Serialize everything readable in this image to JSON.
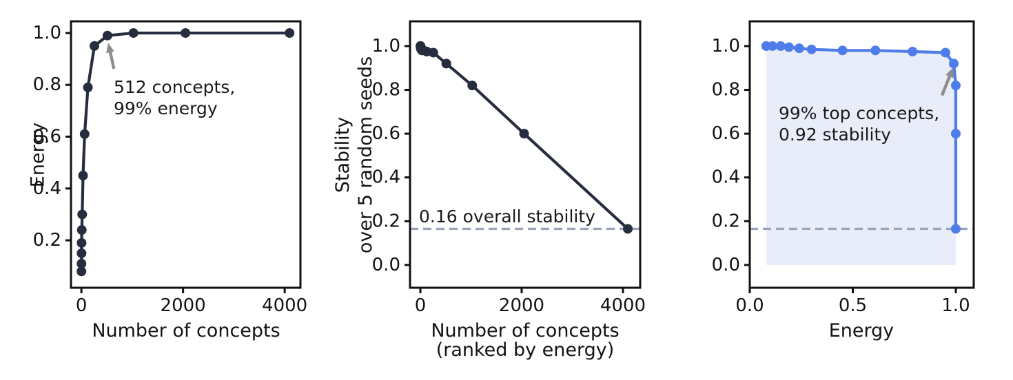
{
  "figure": {
    "description": "Three-panel line figure: energy saturation, stability decline, and stability vs energy trade-off",
    "background": "#ffffff",
    "colors": {
      "dark_line": "#262d3e",
      "blue_line": "#4e7ce8",
      "fill": "#e9edf9",
      "dashed": "#9aa5ba",
      "arrow": "#8e8e8e",
      "spine": "#111111",
      "text": "#131313"
    }
  },
  "chart_data": [
    {
      "type": "line",
      "title": "",
      "xlabel_lines": [
        "Number of concepts"
      ],
      "ylabel_lines": [
        "Energy"
      ],
      "series_color": "dark_line",
      "x": [
        1,
        2,
        3,
        4,
        8,
        16,
        32,
        64,
        128,
        256,
        512,
        1024,
        2048,
        4096
      ],
      "y": [
        0.08,
        0.11,
        0.15,
        0.19,
        0.24,
        0.3,
        0.45,
        0.61,
        0.79,
        0.95,
        0.99,
        1.0,
        1.0,
        1.0
      ],
      "xlim": [
        -205,
        4310
      ],
      "ylim": [
        0.017,
        1.045
      ],
      "xticks": [
        0,
        2000,
        4000
      ],
      "xtick_labels": [
        "0",
        "2000",
        "4000"
      ],
      "yticks": [
        0.2,
        0.4,
        0.6,
        0.8,
        1.0
      ],
      "ytick_labels": [
        "0.2",
        "0.4",
        "0.6",
        "0.8",
        "1.0"
      ],
      "grid": false,
      "annotation": {
        "lines": [
          "512 concepts,",
          "99% energy"
        ],
        "arrow_tail": [
          640,
          0.862
        ],
        "arrow_head": [
          527,
          0.962
        ]
      }
    },
    {
      "type": "line",
      "title": "",
      "xlabel_lines": [
        "Number of concepts",
        "(ranked by energy)"
      ],
      "ylabel_lines": [
        "Stability",
        "over 5 random seeds"
      ],
      "series_color": "dark_line",
      "x": [
        1,
        2,
        3,
        4,
        8,
        16,
        32,
        64,
        128,
        256,
        512,
        1024,
        2048,
        4096
      ],
      "y": [
        1.0,
        1.0,
        1.0,
        0.995,
        0.99,
        0.985,
        0.98,
        0.98,
        0.975,
        0.97,
        0.92,
        0.82,
        0.6,
        0.165
      ],
      "xlim": [
        -204,
        4340
      ],
      "ylim": [
        -0.104,
        1.113
      ],
      "xticks": [
        0,
        2000,
        4000
      ],
      "xtick_labels": [
        "0",
        "2000",
        "4000"
      ],
      "yticks": [
        0.0,
        0.2,
        0.4,
        0.6,
        0.8,
        1.0
      ],
      "ytick_labels": [
        "0.0",
        "0.2",
        "0.4",
        "0.6",
        "0.8",
        "1.0"
      ],
      "grid": false,
      "hline": {
        "y": 0.165,
        "label": "0.16 overall stability"
      }
    },
    {
      "type": "line",
      "title": "",
      "xlabel_lines": [
        "Energy"
      ],
      "ylabel_lines": [],
      "series_color": "blue_line",
      "fill_under": true,
      "x": [
        0.08,
        0.11,
        0.15,
        0.19,
        0.24,
        0.3,
        0.45,
        0.61,
        0.79,
        0.95,
        0.99,
        1.0,
        1.0,
        1.0
      ],
      "y": [
        1.0,
        1.0,
        1.0,
        0.995,
        0.99,
        0.985,
        0.98,
        0.98,
        0.975,
        0.97,
        0.92,
        0.82,
        0.6,
        0.165
      ],
      "xlim": [
        0,
        1.087
      ],
      "ylim": [
        -0.104,
        1.113
      ],
      "xticks": [
        0.0,
        0.5,
        1.0
      ],
      "xtick_labels": [
        "0.0",
        "0.5",
        "1.0"
      ],
      "yticks": [
        0.0,
        0.2,
        0.4,
        0.6,
        0.8,
        1.0
      ],
      "ytick_labels": [
        "0.0",
        "0.2",
        "0.4",
        "0.6",
        "0.8",
        "1.0"
      ],
      "grid": false,
      "hline": {
        "y": 0.165,
        "label": ""
      },
      "annotation": {
        "lines": [
          "99% top concepts,",
          "0.92 stability"
        ],
        "arrow_tail": [
          0.933,
          0.775
        ],
        "arrow_head": [
          0.987,
          0.902
        ]
      }
    }
  ]
}
